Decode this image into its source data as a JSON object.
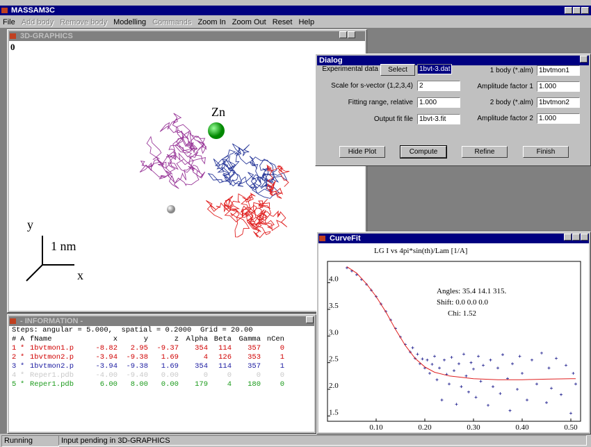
{
  "app_title": "MASSAM3C",
  "menu": [
    {
      "label": "File",
      "enabled": true
    },
    {
      "label": "Add body",
      "enabled": false
    },
    {
      "label": "Remove body",
      "enabled": false
    },
    {
      "label": "Modelling",
      "enabled": true
    },
    {
      "label": "Commands",
      "enabled": false
    },
    {
      "label": "Zoom In",
      "enabled": true
    },
    {
      "label": "Zoom Out",
      "enabled": true
    },
    {
      "label": "Reset",
      "enabled": true
    },
    {
      "label": "Help",
      "enabled": true
    }
  ],
  "graphics": {
    "title": "3D-GRAPHICS",
    "corner_label": "0",
    "atom_label": "Zn",
    "axis_y": "y",
    "scale_label": "1 nm",
    "axis_x": "x"
  },
  "dialog": {
    "title": "Dialog",
    "select_button": "Select",
    "left_fields": [
      {
        "label": "Experimental data",
        "value": "1bvt-3.dat"
      },
      {
        "label": "Scale for s-vector (1,2,3,4)",
        "value": "2"
      },
      {
        "label": "Fitting range, relative",
        "value": "1.000"
      },
      {
        "label": "Output fit file",
        "value": "1bvt-3.fit"
      }
    ],
    "right_fields": [
      {
        "label": "1 body (*.alm)",
        "value": "1bvtmon1"
      },
      {
        "label": "Amplitude factor 1",
        "value": "1.000"
      },
      {
        "label": "2 body (*.alm)",
        "value": "1bvtmon2"
      },
      {
        "label": "Amplitude factor 2",
        "value": "1.000"
      }
    ],
    "buttons": [
      "Hide Plot",
      "Compute",
      "Refine",
      "Finish"
    ]
  },
  "info": {
    "title": "- INFORMATION -",
    "steps": "Steps: angular = 5.000,  spatial = 0.2000  Grid = 20.00",
    "columns": [
      "#",
      "A",
      "fName",
      "x",
      "y",
      "z",
      "Alpha",
      "Beta",
      "Gamma",
      "nCen"
    ],
    "rows": [
      {
        "color": "#d00000",
        "cells": [
          "1",
          "*",
          "1bvtmon1.p",
          "-8.82",
          "2.95",
          "-9.37",
          "354",
          "114",
          "357",
          "0"
        ]
      },
      {
        "color": "#d00000",
        "cells": [
          "2",
          "*",
          "1bvtmon2.p",
          "-3.94",
          "-9.38",
          "1.69",
          "4",
          "126",
          "353",
          "1"
        ]
      },
      {
        "color": "#1a1aa0",
        "cells": [
          "3",
          "*",
          "1bvtmon2.p",
          "-3.94",
          "-9.38",
          "1.69",
          "354",
          "114",
          "357",
          "1"
        ]
      },
      {
        "color": "#c8c8c8",
        "cells": [
          "4",
          "*",
          "Reper1.pdb",
          "-4.00",
          "-9.40",
          "0.00",
          "0",
          "0",
          "0",
          "0"
        ]
      },
      {
        "color": "#1a9a1a",
        "cells": [
          "5",
          "*",
          "Reper1.pdb",
          "6.00",
          "8.00",
          "0.00",
          "179",
          "4",
          "180",
          "0"
        ]
      }
    ]
  },
  "curvefit_title": "CurveFit",
  "chart_data": {
    "type": "scatter",
    "title": "LG I vs 4pi*sin(th)/Lam [1/A]",
    "annotations": [
      "Angles: 35.4 14.1 315.",
      "Shift: 0.0 0.0 0.0",
      "Chi: 1.52"
    ],
    "xlim": [
      0.0,
      0.52
    ],
    "ylim": [
      1.4,
      4.4
    ],
    "xticks": [
      {
        "value": 0.1,
        "label": "0.10"
      },
      {
        "value": 0.2,
        "label": "0.20"
      },
      {
        "value": 0.3,
        "label": "0.30"
      },
      {
        "value": 0.4,
        "label": "0.40"
      },
      {
        "value": 0.5,
        "label": "0.50"
      }
    ],
    "yticks": [
      1.5,
      {
        "value": 2,
        "label": "2.0"
      },
      2.5,
      {
        "value": 3,
        "label": "3.0"
      },
      3.5,
      {
        "value": 4,
        "label": "4.0"
      }
    ],
    "series": [
      {
        "style": "points",
        "color": "#1a1a8c",
        "x": [
          0.04,
          0.05,
          0.06,
          0.07,
          0.08,
          0.09,
          0.1,
          0.11,
          0.12,
          0.13,
          0.14,
          0.15,
          0.16,
          0.17,
          0.175,
          0.18,
          0.185,
          0.19,
          0.195,
          0.2,
          0.205,
          0.21,
          0.215,
          0.22,
          0.225,
          0.23,
          0.235,
          0.24,
          0.245,
          0.25,
          0.255,
          0.26,
          0.265,
          0.27,
          0.275,
          0.28,
          0.285,
          0.29,
          0.295,
          0.3,
          0.305,
          0.31,
          0.315,
          0.32,
          0.33,
          0.335,
          0.34,
          0.35,
          0.355,
          0.36,
          0.37,
          0.375,
          0.38,
          0.39,
          0.395,
          0.4,
          0.41,
          0.42,
          0.43,
          0.44,
          0.45,
          0.455,
          0.46,
          0.47,
          0.48,
          0.49,
          0.5,
          0.505,
          0.51
        ],
        "values": [
          4.28,
          4.22,
          4.15,
          4.06,
          3.97,
          3.86,
          3.74,
          3.6,
          3.46,
          3.3,
          3.14,
          2.98,
          2.84,
          2.7,
          2.78,
          2.58,
          2.66,
          2.48,
          2.57,
          2.4,
          2.55,
          2.3,
          2.47,
          2.62,
          2.18,
          2.4,
          1.8,
          2.55,
          2.28,
          2.1,
          2.6,
          2.35,
          1.72,
          2.48,
          2.05,
          2.66,
          2.25,
          1.95,
          2.5,
          2.38,
          1.85,
          2.62,
          2.15,
          2.45,
          1.7,
          2.55,
          2.05,
          2.4,
          1.92,
          2.65,
          2.2,
          1.6,
          2.48,
          2.0,
          2.62,
          2.3,
          1.8,
          2.55,
          2.1,
          2.68,
          1.75,
          2.4,
          2.02,
          2.58,
          1.9,
          2.45,
          1.55,
          2.3,
          2.1
        ]
      },
      {
        "style": "line",
        "color": "#e02020",
        "x": [
          0.04,
          0.06,
          0.08,
          0.1,
          0.12,
          0.14,
          0.16,
          0.18,
          0.2,
          0.22,
          0.25,
          0.3,
          0.35,
          0.4,
          0.45,
          0.5,
          0.51
        ],
        "values": [
          4.3,
          4.18,
          3.98,
          3.74,
          3.45,
          3.12,
          2.82,
          2.58,
          2.42,
          2.32,
          2.25,
          2.2,
          2.18,
          2.18,
          2.19,
          2.2,
          2.2
        ]
      }
    ]
  },
  "status": [
    "Running",
    "Input pending in 3D-GRAPHICS"
  ]
}
